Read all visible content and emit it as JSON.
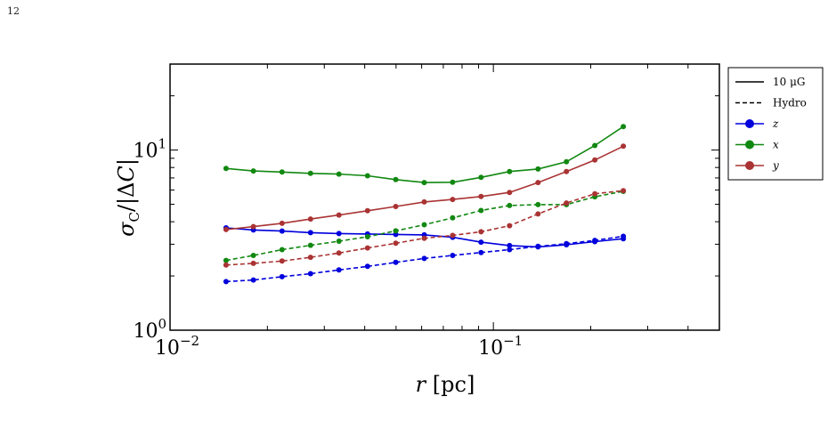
{
  "page": {
    "number": "12"
  },
  "chart_data": {
    "type": "line",
    "xlabel": "r [pc]",
    "ylabel": "σC/|ΔC|",
    "xscale": "log",
    "yscale": "log",
    "xlim": [
      0.01,
      0.5
    ],
    "ylim": [
      1,
      30
    ],
    "x_ticks": [
      {
        "value": 0.01,
        "base": "10",
        "exp": "−2"
      },
      {
        "value": 0.1,
        "base": "10",
        "exp": "−1"
      }
    ],
    "y_ticks": [
      {
        "value": 1,
        "base": "10",
        "exp": "0"
      },
      {
        "value": 10,
        "base": "10",
        "exp": "1"
      }
    ],
    "grid": false,
    "legend": {
      "placement": "outside-right",
      "entries": [
        {
          "label": "10 μG",
          "style": "solid",
          "color": "#000000",
          "marker": false
        },
        {
          "label": "Hydro",
          "style": "dashed",
          "color": "#000000",
          "marker": false
        },
        {
          "label": "z",
          "style": "solid",
          "color": "#0000dd",
          "marker": true
        },
        {
          "label": "x",
          "style": "solid",
          "color": "#118811",
          "marker": true
        },
        {
          "label": "y",
          "style": "solid",
          "color": "#aa3333",
          "marker": true
        }
      ]
    },
    "x": [
      0.0149,
      0.0181,
      0.0222,
      0.0272,
      0.0333,
      0.0408,
      0.0499,
      0.0611,
      0.0748,
      0.0916,
      0.1122,
      0.1374,
      0.1682,
      0.206,
      0.2523
    ],
    "series": [
      {
        "name": "z",
        "field": "10 μG",
        "style": "solid",
        "color": "#0000dd",
        "values": [
          3.7,
          3.6,
          3.55,
          3.48,
          3.44,
          3.42,
          3.4,
          3.38,
          3.28,
          3.08,
          2.95,
          2.9,
          2.98,
          3.1,
          3.22
        ]
      },
      {
        "name": "z",
        "field": "Hydro",
        "style": "dashed",
        "color": "#0000dd",
        "values": [
          1.86,
          1.9,
          1.98,
          2.06,
          2.16,
          2.26,
          2.38,
          2.5,
          2.6,
          2.7,
          2.8,
          2.92,
          3.02,
          3.15,
          3.32
        ]
      },
      {
        "name": "x",
        "field": "10 μG",
        "style": "solid",
        "color": "#118811",
        "values": [
          7.9,
          7.65,
          7.55,
          7.42,
          7.35,
          7.2,
          6.85,
          6.6,
          6.62,
          7.05,
          7.6,
          7.85,
          8.6,
          10.6,
          13.5
        ]
      },
      {
        "name": "x",
        "field": "Hydro",
        "style": "dashed",
        "color": "#118811",
        "values": [
          2.44,
          2.6,
          2.8,
          2.96,
          3.12,
          3.3,
          3.56,
          3.85,
          4.2,
          4.62,
          4.92,
          4.98,
          4.98,
          5.5,
          5.9
        ]
      },
      {
        "name": "y",
        "field": "10 μG",
        "style": "solid",
        "color": "#aa3333",
        "values": [
          3.62,
          3.76,
          3.92,
          4.14,
          4.36,
          4.6,
          4.86,
          5.15,
          5.32,
          5.52,
          5.82,
          6.6,
          7.6,
          8.8,
          10.5
        ]
      },
      {
        "name": "y",
        "field": "Hydro",
        "style": "dashed",
        "color": "#aa3333",
        "values": [
          2.3,
          2.35,
          2.42,
          2.54,
          2.68,
          2.86,
          3.04,
          3.24,
          3.36,
          3.52,
          3.8,
          4.42,
          5.08,
          5.72,
          5.95
        ]
      }
    ]
  }
}
